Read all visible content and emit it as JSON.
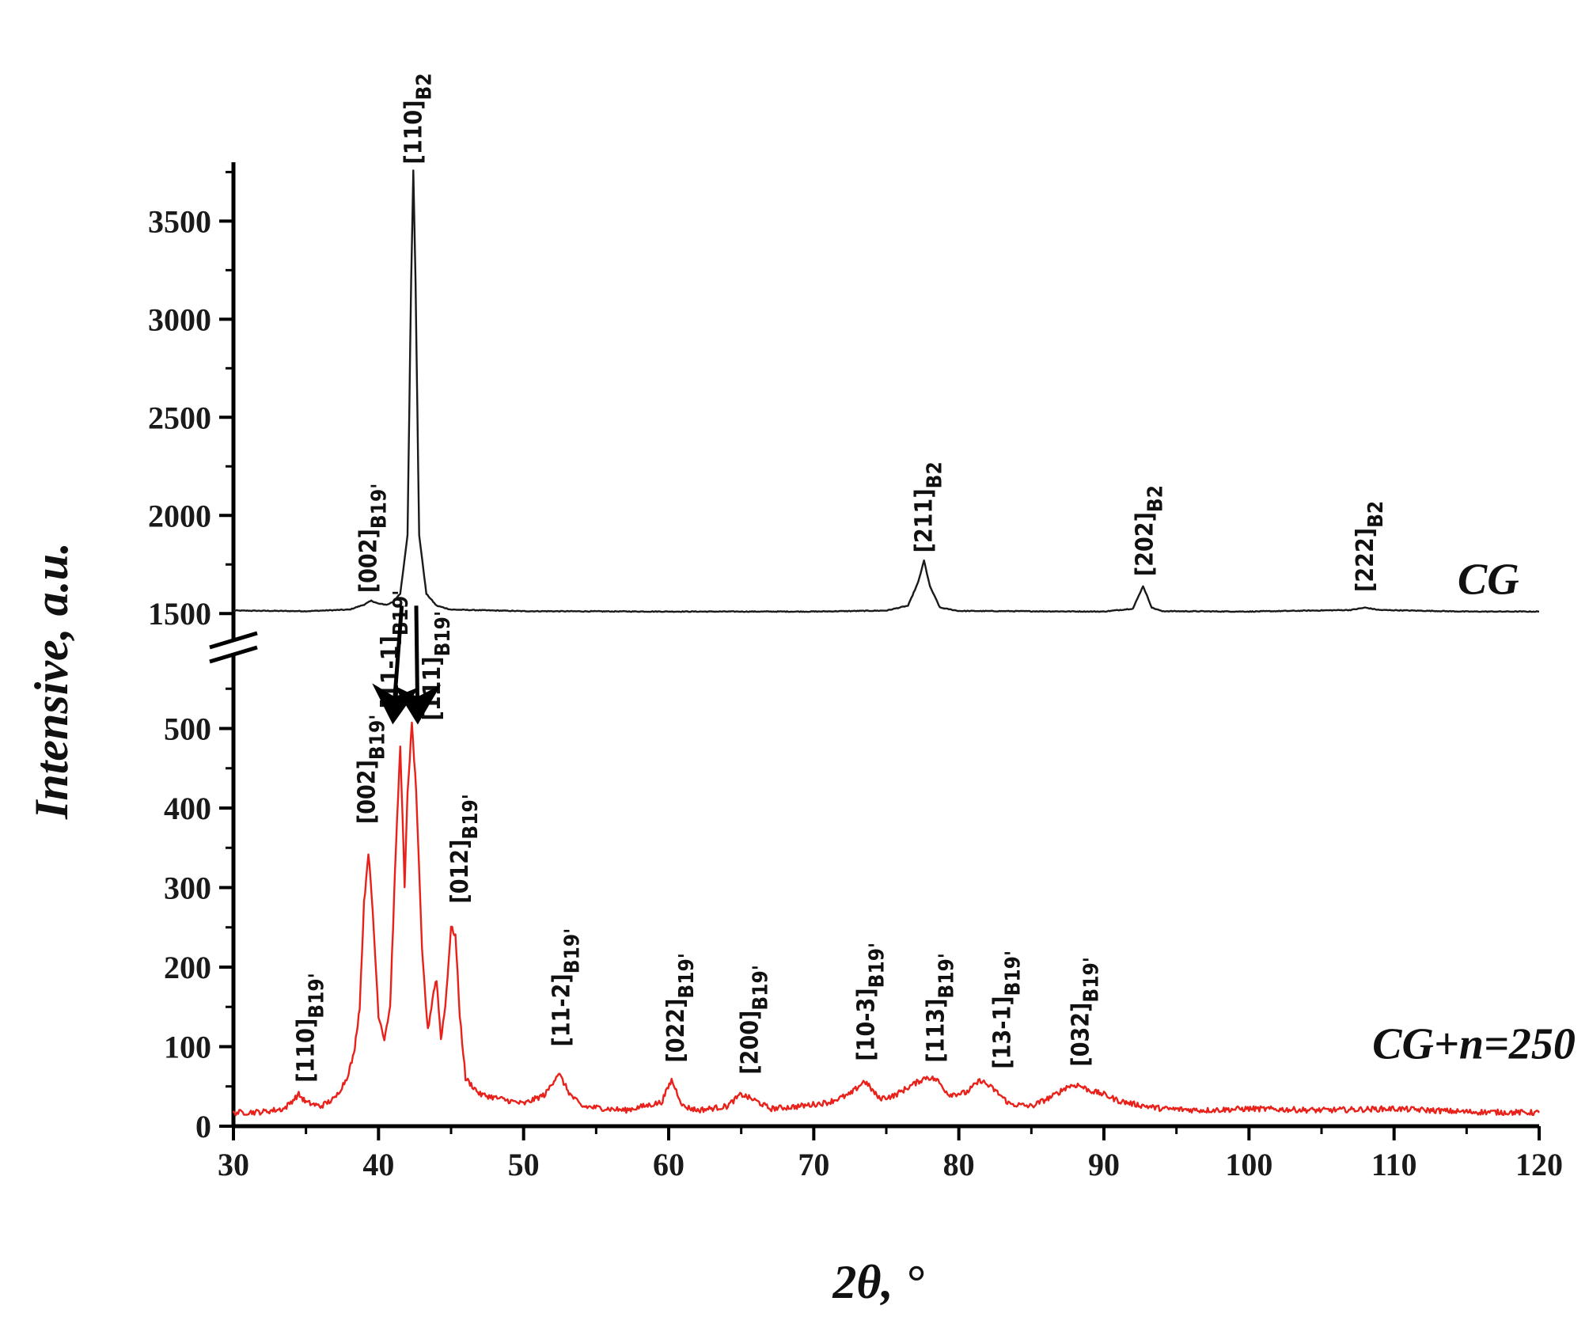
{
  "chart_data": {
    "type": "line",
    "xlabel": "2θ, °",
    "ylabel": "Intensive, a.u.",
    "xlim": [
      30,
      120
    ],
    "x_ticks": [
      30,
      40,
      50,
      60,
      70,
      80,
      90,
      100,
      110,
      120
    ],
    "y_axis_break": true,
    "upper_panel": {
      "ylim": [
        1400,
        3800
      ],
      "y_ticks": [
        1500,
        2000,
        2500,
        3000,
        3500
      ]
    },
    "lower_panel": {
      "ylim": [
        0,
        600
      ],
      "y_ticks": [
        0,
        100,
        200,
        300,
        400,
        500
      ]
    },
    "series": [
      {
        "name": "CG",
        "color": "#1a1a1a",
        "panel": "upper",
        "baseline": 1510,
        "points": [
          [
            30,
            1515
          ],
          [
            35,
            1512
          ],
          [
            38,
            1520
          ],
          [
            39,
            1545
          ],
          [
            39.5,
            1565
          ],
          [
            40,
            1550
          ],
          [
            40.6,
            1545
          ],
          [
            41,
            1560
          ],
          [
            41.5,
            1600
          ],
          [
            42,
            1900
          ],
          [
            42.25,
            3200
          ],
          [
            42.4,
            3760
          ],
          [
            42.55,
            3200
          ],
          [
            42.8,
            1900
          ],
          [
            43.3,
            1600
          ],
          [
            44,
            1540
          ],
          [
            45,
            1520
          ],
          [
            50,
            1512
          ],
          [
            60,
            1510
          ],
          [
            70,
            1510
          ],
          [
            75,
            1515
          ],
          [
            76.5,
            1540
          ],
          [
            77.2,
            1660
          ],
          [
            77.6,
            1770
          ],
          [
            78,
            1640
          ],
          [
            78.7,
            1530
          ],
          [
            80,
            1513
          ],
          [
            90,
            1510
          ],
          [
            92,
            1525
          ],
          [
            92.7,
            1640
          ],
          [
            93.3,
            1530
          ],
          [
            94,
            1512
          ],
          [
            100,
            1510
          ],
          [
            107,
            1518
          ],
          [
            108,
            1530
          ],
          [
            109,
            1518
          ],
          [
            115,
            1510
          ],
          [
            120,
            1510
          ]
        ]
      },
      {
        "name": "CG+n=250",
        "color": "#e8211a",
        "panel": "lower",
        "points": [
          [
            30,
            17
          ],
          [
            32,
            18
          ],
          [
            33.5,
            22
          ],
          [
            34.5,
            40
          ],
          [
            35,
            30
          ],
          [
            36,
            25
          ],
          [
            37,
            35
          ],
          [
            37.8,
            60
          ],
          [
            38.3,
            90
          ],
          [
            38.7,
            150
          ],
          [
            39.0,
            280
          ],
          [
            39.3,
            345
          ],
          [
            39.6,
            270
          ],
          [
            40.0,
            140
          ],
          [
            40.4,
            110
          ],
          [
            40.8,
            150
          ],
          [
            41.2,
            350
          ],
          [
            41.5,
            480
          ],
          [
            41.8,
            300
          ],
          [
            42.0,
            420
          ],
          [
            42.3,
            505
          ],
          [
            42.6,
            420
          ],
          [
            43.0,
            220
          ],
          [
            43.4,
            120
          ],
          [
            43.8,
            170
          ],
          [
            44.0,
            185
          ],
          [
            44.3,
            110
          ],
          [
            44.6,
            150
          ],
          [
            45.0,
            250
          ],
          [
            45.3,
            240
          ],
          [
            45.6,
            140
          ],
          [
            46.0,
            60
          ],
          [
            47,
            40
          ],
          [
            50,
            28
          ],
          [
            51.5,
            40
          ],
          [
            52.4,
            67
          ],
          [
            53.2,
            40
          ],
          [
            54,
            25
          ],
          [
            57,
            20
          ],
          [
            59.5,
            30
          ],
          [
            60.2,
            58
          ],
          [
            61,
            25
          ],
          [
            62,
            20
          ],
          [
            64,
            25
          ],
          [
            65,
            40
          ],
          [
            66,
            32
          ],
          [
            67,
            22
          ],
          [
            69,
            25
          ],
          [
            71,
            30
          ],
          [
            72.5,
            40
          ],
          [
            73.5,
            57
          ],
          [
            74.5,
            35
          ],
          [
            75.5,
            38
          ],
          [
            76.8,
            52
          ],
          [
            77.8,
            62
          ],
          [
            78.5,
            58
          ],
          [
            79.3,
            40
          ],
          [
            80.5,
            42
          ],
          [
            81.5,
            58
          ],
          [
            82.5,
            45
          ],
          [
            83.5,
            28
          ],
          [
            85,
            25
          ],
          [
            86.5,
            38
          ],
          [
            87.5,
            50
          ],
          [
            88.2,
            52
          ],
          [
            89,
            45
          ],
          [
            90,
            40
          ],
          [
            91,
            32
          ],
          [
            92,
            28
          ],
          [
            94,
            22
          ],
          [
            97,
            20
          ],
          [
            100,
            22
          ],
          [
            105,
            20
          ],
          [
            110,
            22
          ],
          [
            115,
            18
          ],
          [
            120,
            17
          ]
        ]
      }
    ],
    "series_labels": [
      {
        "text": "CG",
        "panel": "upper",
        "x": 116.5,
        "y": 1600
      },
      {
        "text": "CG+n=250",
        "panel": "lower",
        "x": 115.5,
        "y": 85
      }
    ],
    "peak_labels": [
      {
        "panel": "upper",
        "x": 42.4,
        "y": 3790,
        "main": "[110]",
        "sub": "B2"
      },
      {
        "panel": "upper",
        "x": 39.3,
        "y": 1605,
        "main": "[002]",
        "sub": "B19'"
      },
      {
        "panel": "upper",
        "x": 77.6,
        "y": 1810,
        "main": "[211]",
        "sub": "B2"
      },
      {
        "panel": "upper",
        "x": 92.8,
        "y": 1690,
        "main": "[202]",
        "sub": "B2"
      },
      {
        "panel": "upper",
        "x": 108.0,
        "y": 1610,
        "main": "[222]",
        "sub": "B2"
      },
      {
        "panel": "lower",
        "x": 35.0,
        "y": 55,
        "main": "[110]",
        "sub": "B19'"
      },
      {
        "panel": "lower",
        "x": 39.2,
        "y": 380,
        "main": "[002]",
        "sub": "B19'"
      },
      {
        "panel": "lower",
        "x": 40.8,
        "y": 525,
        "main": "[11-1]",
        "sub": "B19'"
      },
      {
        "panel": "lower",
        "x": 43.7,
        "y": 510,
        "main": "[111]",
        "sub": "B19'"
      },
      {
        "panel": "lower",
        "x": 45.6,
        "y": 280,
        "main": "[012]",
        "sub": "B19'"
      },
      {
        "panel": "lower",
        "x": 52.6,
        "y": 100,
        "main": "[11-2]",
        "sub": "B19'"
      },
      {
        "panel": "lower",
        "x": 60.5,
        "y": 80,
        "main": "[022]",
        "sub": "B19'"
      },
      {
        "panel": "lower",
        "x": 65.6,
        "y": 65,
        "main": "[200]",
        "sub": "B19'"
      },
      {
        "panel": "lower",
        "x": 73.6,
        "y": 82,
        "main": "[10-3]",
        "sub": "B19'"
      },
      {
        "panel": "lower",
        "x": 78.4,
        "y": 80,
        "main": "[113]",
        "sub": "B19'"
      },
      {
        "panel": "lower",
        "x": 83.0,
        "y": 72,
        "main": "[13-1]",
        "sub": "B19'"
      },
      {
        "panel": "lower",
        "x": 88.4,
        "y": 75,
        "main": "[032]",
        "sub": "B19'"
      }
    ],
    "annotations": [
      {
        "type": "arrow",
        "from": {
          "panel": "upper",
          "x": 41.6,
          "y": 1540
        },
        "to": {
          "panel": "lower",
          "x": 41.0,
          "y": 510
        }
      },
      {
        "type": "arrow",
        "from": {
          "panel": "upper",
          "x": 42.6,
          "y": 1540
        },
        "to": {
          "panel": "lower",
          "x": 42.7,
          "y": 510
        }
      }
    ]
  }
}
